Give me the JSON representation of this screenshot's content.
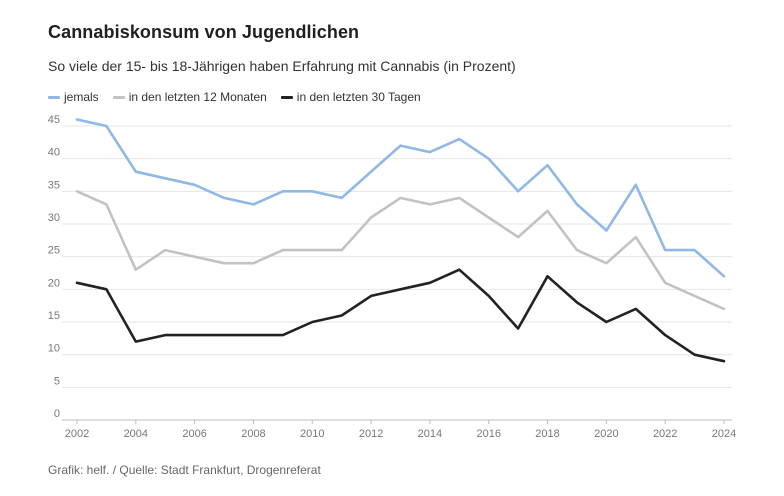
{
  "header": {
    "title": "Cannabiskonsum von Jugendlichen",
    "subtitle": "So viele der 15- bis 18-Jährigen haben Erfahrung mit Cannabis (in Prozent)"
  },
  "footer": {
    "source": "Grafik: helf. / Quelle: Stadt Frankfurt, Drogenreferat"
  },
  "chart_data": {
    "type": "line",
    "title": "Cannabiskonsum von Jugendlichen",
    "subtitle": "So viele der 15- bis 18-Jährigen haben Erfahrung mit Cannabis (in Prozent)",
    "xlabel": "",
    "ylabel": "",
    "x": [
      2002,
      2003,
      2004,
      2005,
      2006,
      2007,
      2008,
      2009,
      2010,
      2011,
      2012,
      2013,
      2014,
      2015,
      2016,
      2017,
      2018,
      2019,
      2020,
      2021,
      2022,
      2023,
      2024
    ],
    "x_ticks": [
      "2002",
      "2004",
      "2006",
      "2008",
      "2010",
      "2012",
      "2014",
      "2016",
      "2018",
      "2020",
      "2022",
      "2024"
    ],
    "xlim": [
      2002,
      2024
    ],
    "y_ticks": [
      "0",
      "5",
      "10",
      "15",
      "20",
      "25",
      "30",
      "35",
      "40",
      "45"
    ],
    "ylim": [
      0,
      45
    ],
    "grid": true,
    "legend_position": "top-left",
    "series": [
      {
        "name": "jemals",
        "color": "#8fb8e6",
        "values": [
          46,
          45,
          38,
          37,
          36,
          34,
          33,
          35,
          35,
          34,
          38,
          42,
          41,
          43,
          40,
          35,
          39,
          33,
          29,
          36,
          26,
          26,
          22
        ]
      },
      {
        "name": "in den letzten 12 Monaten",
        "color": "#c2c2c2",
        "values": [
          35,
          33,
          23,
          26,
          25,
          24,
          24,
          26,
          26,
          26,
          31,
          34,
          33,
          34,
          31,
          28,
          32,
          26,
          24,
          28,
          21,
          19,
          17
        ]
      },
      {
        "name": "in den letzten 30 Tagen",
        "color": "#222222",
        "values": [
          21,
          20,
          12,
          13,
          13,
          13,
          13,
          13,
          15,
          16,
          19,
          20,
          21,
          23,
          19,
          14,
          22,
          18,
          15,
          17,
          13,
          10,
          9
        ]
      }
    ]
  }
}
